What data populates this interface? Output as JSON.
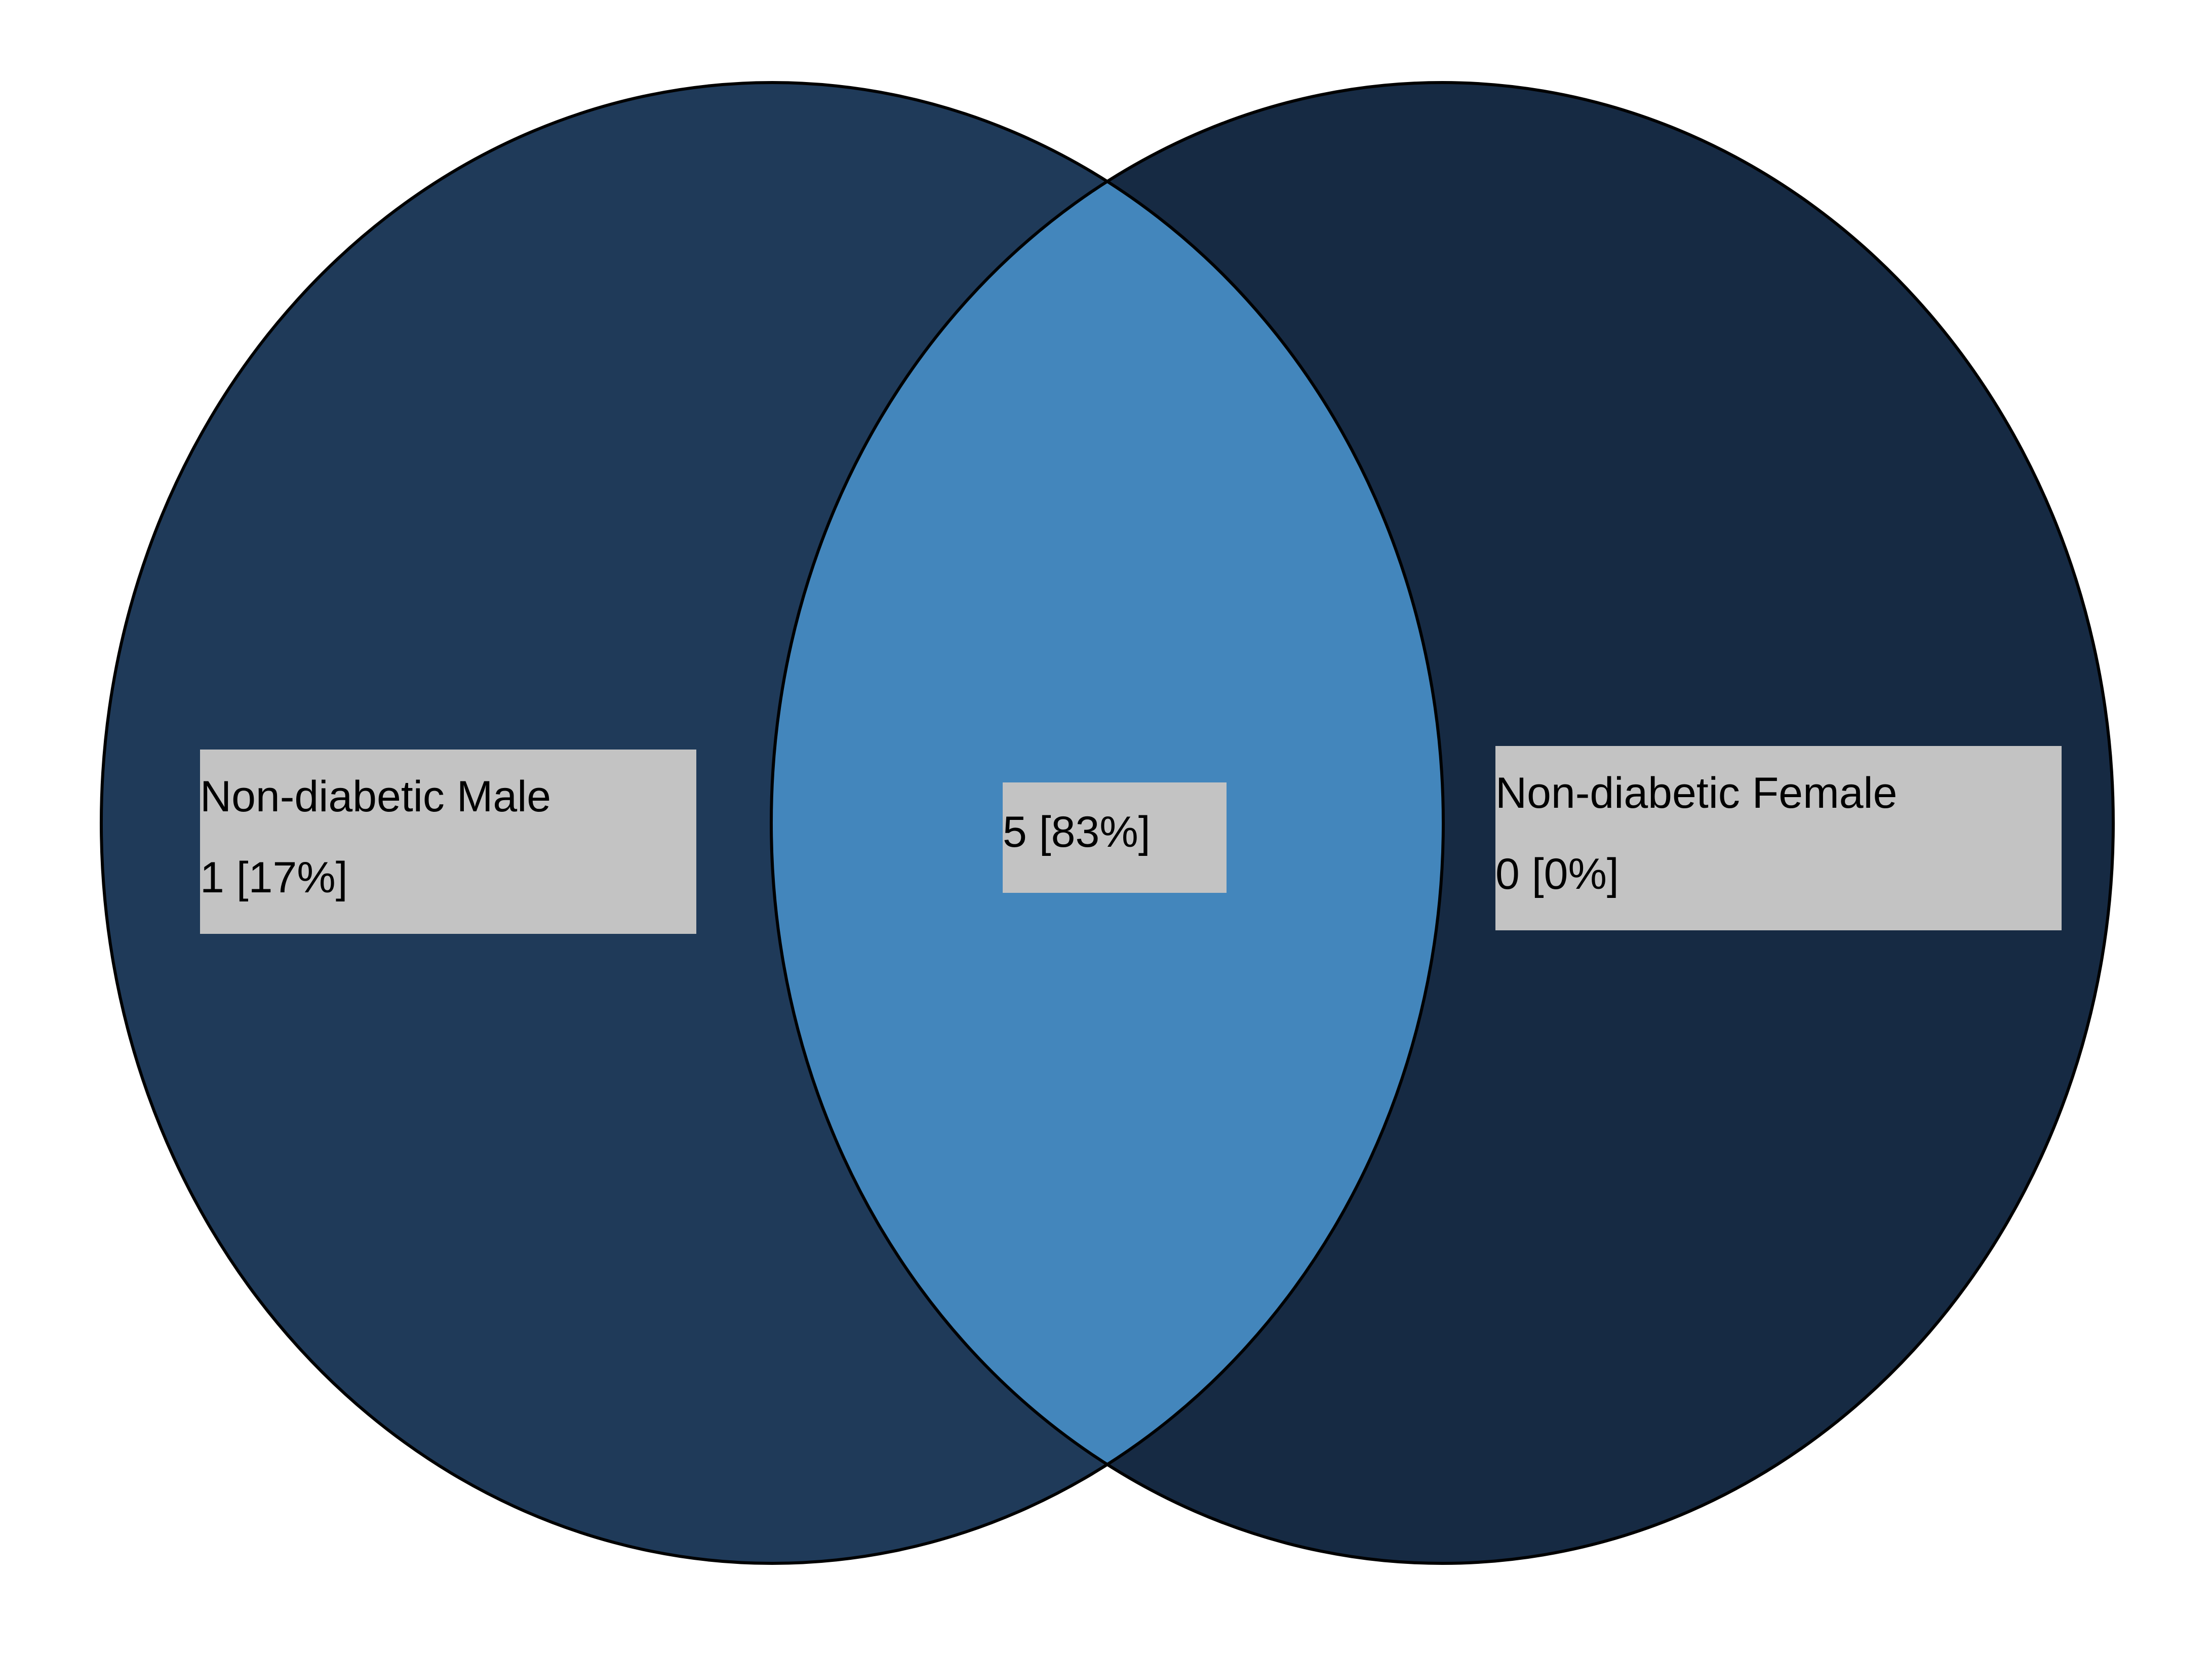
{
  "diagram": {
    "type": "venn",
    "colors": {
      "left_only": "#1f3a59",
      "right_only": "#162a43",
      "overlap": "#4386bc",
      "outline": "#000000",
      "label_bg": "#c3c3c3"
    },
    "sets": [
      {
        "name": "Non-diabetic Male",
        "value_text": "1 [17%]",
        "count": 1,
        "percent": 17
      },
      {
        "name": "Non-diabetic Female",
        "value_text": "0 [0%]",
        "count": 0,
        "percent": 0
      }
    ],
    "overlap": {
      "value_text": "5 [83%]",
      "count": 5,
      "percent": 83
    }
  }
}
